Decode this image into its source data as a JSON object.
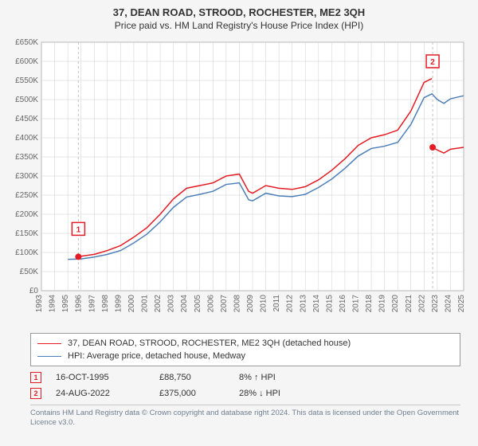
{
  "title": "37, DEAN ROAD, STROOD, ROCHESTER, ME2 3QH",
  "subtitle": "Price paid vs. HM Land Registry's House Price Index (HPI)",
  "chart": {
    "type": "line",
    "background_color": "#ffffff",
    "container_bg": "#f5f5f5",
    "grid_color": "#cfcfcf",
    "axis_color": "#666666",
    "label_color": "#666666",
    "label_fontsize": 10,
    "x_years": [
      1993,
      1994,
      1995,
      1996,
      1997,
      1998,
      1999,
      2000,
      2001,
      2002,
      2003,
      2004,
      2005,
      2006,
      2007,
      2008,
      2009,
      2010,
      2011,
      2012,
      2013,
      2014,
      2015,
      2016,
      2017,
      2018,
      2019,
      2020,
      2021,
      2022,
      2023,
      2024,
      2025
    ],
    "ylim": [
      0,
      650000
    ],
    "ytick_step": 50000,
    "y_tick_labels": [
      "£0",
      "£50K",
      "£100K",
      "£150K",
      "£200K",
      "£250K",
      "£300K",
      "£350K",
      "£400K",
      "£450K",
      "£500K",
      "£550K",
      "£600K",
      "£650K"
    ],
    "series": [
      {
        "name": "37, DEAN ROAD, STROOD, ROCHESTER, ME2 3QH (detached house)",
        "color": "#e31b23",
        "line_width": 1.5,
        "data": [
          [
            1995.8,
            88750
          ],
          [
            1996,
            90000
          ],
          [
            1997,
            95000
          ],
          [
            1998,
            105000
          ],
          [
            1999,
            118000
          ],
          [
            2000,
            140000
          ],
          [
            2001,
            165000
          ],
          [
            2002,
            200000
          ],
          [
            2003,
            240000
          ],
          [
            2004,
            268000
          ],
          [
            2005,
            275000
          ],
          [
            2006,
            282000
          ],
          [
            2007,
            300000
          ],
          [
            2008,
            305000
          ],
          [
            2008.7,
            260000
          ],
          [
            2009,
            255000
          ],
          [
            2010,
            275000
          ],
          [
            2011,
            268000
          ],
          [
            2012,
            265000
          ],
          [
            2013,
            272000
          ],
          [
            2014,
            290000
          ],
          [
            2015,
            315000
          ],
          [
            2016,
            345000
          ],
          [
            2017,
            380000
          ],
          [
            2018,
            400000
          ],
          [
            2019,
            408000
          ],
          [
            2020,
            420000
          ],
          [
            2021,
            470000
          ],
          [
            2022,
            545000
          ],
          [
            2022.6,
            555000
          ]
        ]
      },
      {
        "name": "HPI: Average price, detached house, Medway",
        "color": "#4d7fb8",
        "line_width": 1.5,
        "data": [
          [
            1995,
            82000
          ],
          [
            1996,
            83000
          ],
          [
            1997,
            88000
          ],
          [
            1998,
            95000
          ],
          [
            1999,
            105000
          ],
          [
            2000,
            125000
          ],
          [
            2001,
            148000
          ],
          [
            2002,
            180000
          ],
          [
            2003,
            218000
          ],
          [
            2004,
            245000
          ],
          [
            2005,
            252000
          ],
          [
            2006,
            260000
          ],
          [
            2007,
            278000
          ],
          [
            2008,
            282000
          ],
          [
            2008.7,
            238000
          ],
          [
            2009,
            235000
          ],
          [
            2010,
            255000
          ],
          [
            2011,
            248000
          ],
          [
            2012,
            246000
          ],
          [
            2013,
            252000
          ],
          [
            2014,
            270000
          ],
          [
            2015,
            292000
          ],
          [
            2016,
            320000
          ],
          [
            2017,
            352000
          ],
          [
            2018,
            372000
          ],
          [
            2019,
            378000
          ],
          [
            2020,
            388000
          ],
          [
            2021,
            435000
          ],
          [
            2022,
            505000
          ],
          [
            2022.6,
            515000
          ],
          [
            2023,
            500000
          ],
          [
            2023.5,
            490000
          ],
          [
            2024,
            502000
          ],
          [
            2025,
            510000
          ]
        ]
      },
      {
        "name": "post-sale-red",
        "color": "#e31b23",
        "line_width": 1.5,
        "hidden_from_legend": true,
        "data": [
          [
            2022.65,
            375000
          ],
          [
            2023,
            368000
          ],
          [
            2023.5,
            360000
          ],
          [
            2024,
            370000
          ],
          [
            2025,
            375000
          ]
        ]
      }
    ],
    "markers": [
      {
        "n": 1,
        "color": "#e31b23",
        "x": 1995.8,
        "y": 88750,
        "dot": true,
        "box_y_offset": -35
      },
      {
        "n": 2,
        "color": "#e31b23",
        "x": 2022.65,
        "y": 375000,
        "dot": true,
        "box_at_top": true,
        "box_y": 600000
      }
    ],
    "marker_dot_radius": 4,
    "dashed_line_color": "#bfbfbf"
  },
  "legend": {
    "items": [
      {
        "color": "#e31b23",
        "label": "37, DEAN ROAD, STROOD, ROCHESTER, ME2 3QH (detached house)"
      },
      {
        "color": "#4d7fb8",
        "label": "HPI: Average price, detached house, Medway"
      }
    ]
  },
  "transactions": [
    {
      "n": 1,
      "color": "#e31b23",
      "date": "16-OCT-1995",
      "price": "£88,750",
      "delta": "8% ↑ HPI"
    },
    {
      "n": 2,
      "color": "#e31b23",
      "date": "24-AUG-2022",
      "price": "£375,000",
      "delta": "28% ↓ HPI"
    }
  ],
  "copyright": "Contains HM Land Registry data © Crown copyright and database right 2024. This data is licensed under the Open Government Licence v3.0."
}
